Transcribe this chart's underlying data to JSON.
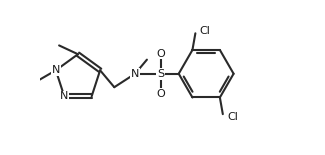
{
  "bg_color": "#ffffff",
  "line_color": "#2a2a2a",
  "text_color": "#1a1a1a",
  "line_width": 1.5,
  "font_size": 8.0,
  "figsize": [
    3.25,
    1.55
  ],
  "dpi": 100,
  "xlim": [
    0.0,
    1.0
  ],
  "ylim": [
    0.0,
    0.62
  ]
}
